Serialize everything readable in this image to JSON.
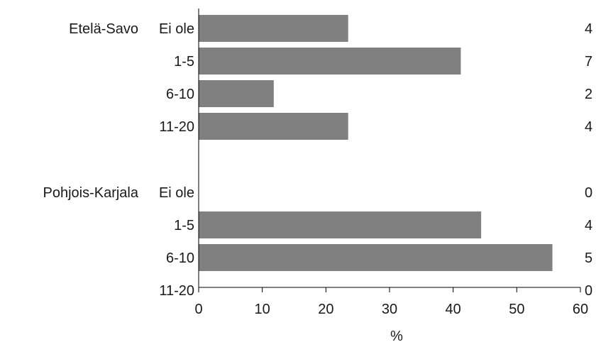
{
  "chart_data": {
    "type": "bar",
    "orientation": "horizontal",
    "title": "",
    "xlabel": "%",
    "ylabel": "",
    "xlim": [
      0,
      60
    ],
    "x_ticks": [
      0,
      10,
      20,
      30,
      40,
      50,
      60
    ],
    "grid": false,
    "legend": "none",
    "bar_color": "#808080",
    "groups": [
      {
        "name": "Etelä-Savo",
        "categories": [
          "Ei ole",
          "1-5",
          "6-10",
          "11-20"
        ],
        "values": [
          23.5,
          41.2,
          11.8,
          23.5
        ],
        "counts": [
          "4",
          "7",
          "2",
          "4"
        ]
      },
      {
        "name": "Pohjois-Karjala",
        "categories": [
          "Ei ole",
          "1-5",
          "6-10",
          "11-20"
        ],
        "values": [
          0,
          44.4,
          55.6,
          0
        ],
        "counts": [
          "0",
          "4",
          "5",
          "0"
        ]
      }
    ]
  }
}
